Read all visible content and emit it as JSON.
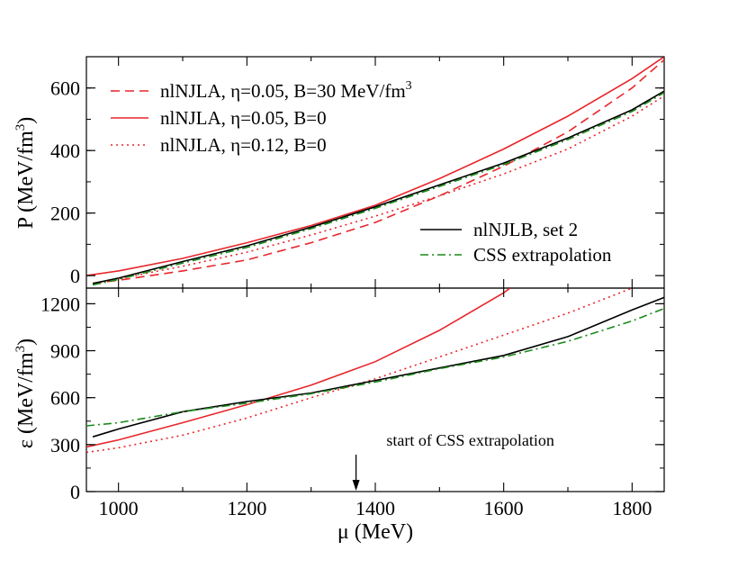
{
  "chart_data": {
    "type": "line",
    "xlabel": "μ (MeV)",
    "xlim": [
      950,
      1850
    ],
    "x_ticks": [
      1000,
      1200,
      1400,
      1600,
      1800
    ],
    "panels": [
      {
        "id": "pressure",
        "ylabel": "P (MeV/fm",
        "ylabel_sup": "3",
        "ylabel_close": ")",
        "ylim": [
          -40,
          700
        ],
        "y_ticks": [
          0,
          200,
          400,
          600
        ],
        "legend_top_left": [
          {
            "label": "nlNJLA, η=0.05, B=30 MeV/fm",
            "sup": "3",
            "color": "#e8262b",
            "dash": "dashed"
          },
          {
            "label": "nlNJLA, η=0.05, B=0",
            "sup": "",
            "color": "#e8262b",
            "dash": "solid"
          },
          {
            "label": "nlNJLA, η=0.12, B=0",
            "sup": "",
            "color": "#e8262b",
            "dash": "dotted"
          }
        ],
        "legend_right": [
          {
            "label": "nlNJLB, set 2",
            "color": "#000000",
            "dash": "solid"
          },
          {
            "label": "CSS extrapolation",
            "color": "#1a8a1a",
            "dash": "dashdot"
          }
        ],
        "series": [
          {
            "color": "#e8262b",
            "dash": "dashed",
            "x": [
              960,
              1000,
              1100,
              1200,
              1300,
              1400,
              1500,
              1600,
              1700,
              1800,
              1850
            ],
            "y": [
              -25,
              -15,
              15,
              50,
              105,
              170,
              255,
              350,
              460,
              600,
              690
            ]
          },
          {
            "color": "#e8262b",
            "dash": "solid",
            "x": [
              950,
              1000,
              1100,
              1200,
              1300,
              1400,
              1500,
              1600,
              1700,
              1800,
              1850
            ],
            "y": [
              0,
              15,
              55,
              105,
              160,
              225,
              310,
              405,
              510,
              630,
              700
            ]
          },
          {
            "color": "#e8262b",
            "dash": "dotted",
            "x": [
              960,
              1000,
              1100,
              1200,
              1300,
              1400,
              1500,
              1600,
              1700,
              1800,
              1850
            ],
            "y": [
              -25,
              -10,
              30,
              75,
              130,
              190,
              255,
              325,
              405,
              510,
              575
            ]
          },
          {
            "color": "#000000",
            "dash": "solid",
            "x": [
              960,
              1000,
              1100,
              1200,
              1300,
              1400,
              1500,
              1600,
              1700,
              1800,
              1850
            ],
            "y": [
              -25,
              -8,
              45,
              95,
              155,
              220,
              290,
              360,
              440,
              530,
              590
            ]
          },
          {
            "color": "#1a8a1a",
            "dash": "dashdot",
            "x": [
              960,
              1000,
              1100,
              1200,
              1300,
              1400,
              1500,
              1600,
              1700,
              1800,
              1850
            ],
            "y": [
              -30,
              -12,
              40,
              90,
              150,
              215,
              285,
              355,
              435,
              525,
              585
            ]
          }
        ]
      },
      {
        "id": "energy-density",
        "ylabel": "ε (MeV/fm",
        "ylabel_sup": "3",
        "ylabel_close": ")",
        "ylim": [
          0,
          1300
        ],
        "y_ticks": [
          0,
          300,
          600,
          900,
          1200
        ],
        "annotation": {
          "text": "start of CSS extrapolation",
          "x": 1370
        },
        "series": [
          {
            "color": "#e8262b",
            "dash": "solid",
            "x": [
              950,
              1000,
              1100,
              1200,
              1300,
              1400,
              1500,
              1600,
              1610
            ],
            "y": [
              285,
              330,
              440,
              555,
              680,
              830,
              1030,
              1270,
              1300
            ]
          },
          {
            "color": "#e8262b",
            "dash": "dotted",
            "x": [
              950,
              1000,
              1100,
              1200,
              1300,
              1400,
              1500,
              1600,
              1700,
              1800
            ],
            "y": [
              250,
              280,
              360,
              470,
              600,
              720,
              860,
              1000,
              1140,
              1300
            ]
          },
          {
            "color": "#000000",
            "dash": "solid",
            "x": [
              960,
              1000,
              1100,
              1200,
              1300,
              1400,
              1500,
              1600,
              1700,
              1800,
              1850
            ],
            "y": [
              350,
              400,
              510,
              575,
              630,
              710,
              790,
              870,
              990,
              1160,
              1240
            ]
          },
          {
            "color": "#1a8a1a",
            "dash": "dashdot",
            "x": [
              950,
              1000,
              1100,
              1200,
              1300,
              1400,
              1500,
              1600,
              1700,
              1800,
              1850
            ],
            "y": [
              420,
              440,
              510,
              565,
              625,
              700,
              785,
              860,
              960,
              1090,
              1170
            ]
          }
        ]
      }
    ]
  }
}
